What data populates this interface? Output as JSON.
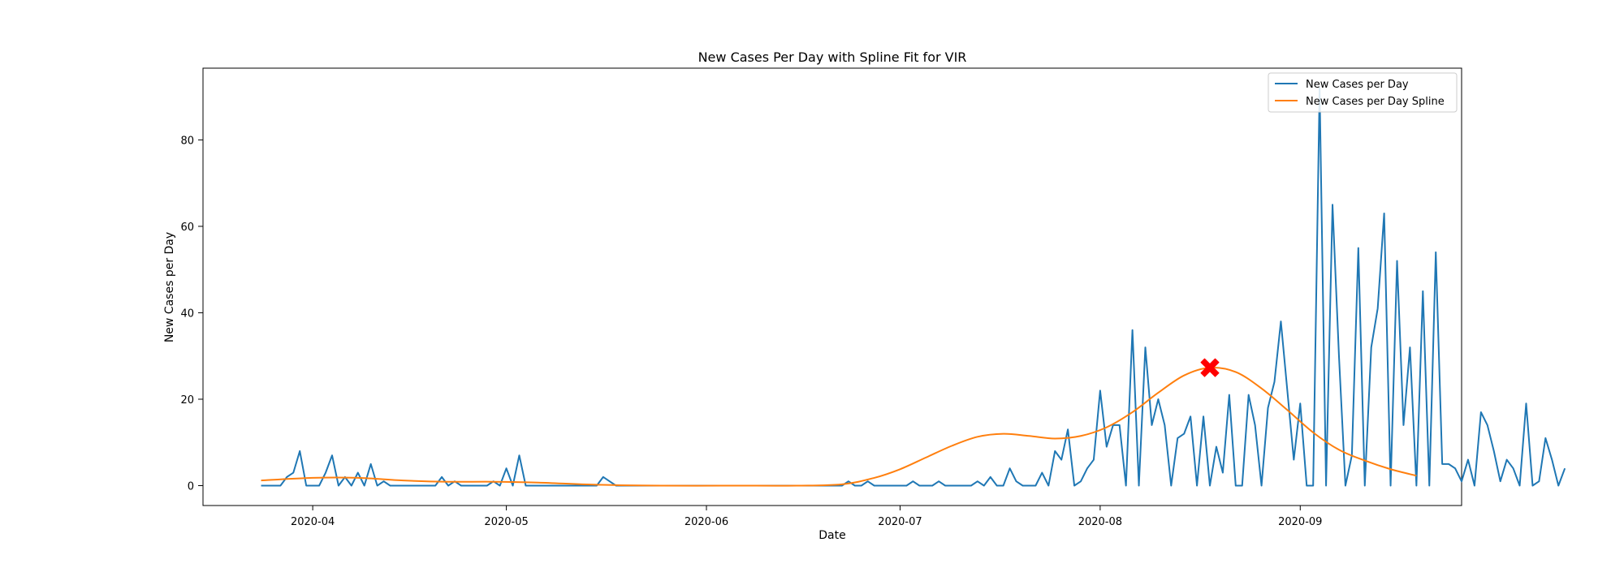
{
  "chart_data": {
    "type": "line",
    "title": "New Cases Per Day with Spline Fit for VIR",
    "xlabel": "Date",
    "ylabel": "New Cases per Day",
    "x_start": "2020-03-24",
    "xlim": [
      "2020-03-15",
      "2020-09-26"
    ],
    "ylim": [
      -4.6,
      96.6
    ],
    "x_ticks": [
      "2020-04",
      "2020-05",
      "2020-06",
      "2020-07",
      "2020-08",
      "2020-09"
    ],
    "y_ticks": [
      0,
      20,
      40,
      60,
      80
    ],
    "legend_position": "top-right",
    "grid": false,
    "series": [
      {
        "name": "New Cases per Day",
        "color": "#1f77b4",
        "values": [
          0,
          0,
          0,
          0,
          2,
          3,
          8,
          0,
          0,
          0,
          3,
          7,
          0,
          2,
          0,
          3,
          0,
          5,
          0,
          1,
          0,
          0,
          0,
          0,
          0,
          0,
          0,
          0,
          2,
          0,
          1,
          0,
          0,
          0,
          0,
          0,
          1,
          0,
          4,
          0,
          7,
          0,
          0,
          0,
          0,
          0,
          0,
          0,
          0,
          0,
          0,
          0,
          0,
          2,
          1,
          0,
          0,
          0,
          0,
          0,
          0,
          0,
          0,
          0,
          0,
          0,
          0,
          0,
          0,
          0,
          0,
          0,
          0,
          0,
          0,
          0,
          0,
          0,
          0,
          0,
          0,
          0,
          0,
          0,
          0,
          0,
          0,
          0,
          0,
          0,
          0,
          1,
          0,
          0,
          1,
          0,
          0,
          0,
          0,
          0,
          0,
          1,
          0,
          0,
          0,
          1,
          0,
          0,
          0,
          0,
          0,
          1,
          0,
          2,
          0,
          0,
          4,
          1,
          0,
          0,
          0,
          3,
          0,
          8,
          6,
          13,
          0,
          1,
          4,
          6,
          22,
          9,
          14,
          14,
          0,
          36,
          0,
          32,
          14,
          20,
          14,
          0,
          11,
          12,
          16,
          0,
          16,
          0,
          9,
          3,
          21,
          0,
          0,
          21,
          14,
          0,
          18,
          24,
          38,
          22,
          6,
          19,
          0,
          0,
          92,
          0,
          65,
          30,
          0,
          7,
          55,
          0,
          32,
          41,
          63,
          0,
          52,
          14,
          32,
          0,
          45,
          0,
          54,
          5,
          5,
          4,
          1,
          6,
          0,
          17,
          14,
          8,
          1,
          6,
          4,
          0,
          19,
          0,
          1,
          11,
          6,
          0,
          4
        ]
      },
      {
        "name": "New Cases per Day Spline",
        "color": "#ff7f0e",
        "points": [
          [
            "2020-03-24",
            1.2
          ],
          [
            "2020-04-01",
            1.8
          ],
          [
            "2020-04-08",
            1.8
          ],
          [
            "2020-04-15",
            1.2
          ],
          [
            "2020-04-22",
            0.9
          ],
          [
            "2020-04-29",
            0.9
          ],
          [
            "2020-05-06",
            0.7
          ],
          [
            "2020-05-15",
            0.2
          ],
          [
            "2020-05-25",
            0.0
          ],
          [
            "2020-06-05",
            0.0
          ],
          [
            "2020-06-15",
            0.0
          ],
          [
            "2020-06-22",
            0.3
          ],
          [
            "2020-06-27",
            1.8
          ],
          [
            "2020-07-01",
            3.8
          ],
          [
            "2020-07-05",
            6.5
          ],
          [
            "2020-07-09",
            9.2
          ],
          [
            "2020-07-13",
            11.3
          ],
          [
            "2020-07-17",
            12.0
          ],
          [
            "2020-07-21",
            11.5
          ],
          [
            "2020-07-25",
            10.9
          ],
          [
            "2020-07-29",
            11.5
          ],
          [
            "2020-08-02",
            13.5
          ],
          [
            "2020-08-06",
            17.0
          ],
          [
            "2020-08-10",
            21.5
          ],
          [
            "2020-08-14",
            25.5
          ],
          [
            "2020-08-18",
            27.3
          ],
          [
            "2020-08-22",
            26.3
          ],
          [
            "2020-08-26",
            22.5
          ],
          [
            "2020-08-30",
            17.5
          ],
          [
            "2020-09-03",
            12.3
          ],
          [
            "2020-09-07",
            8.3
          ],
          [
            "2020-09-11",
            5.8
          ],
          [
            "2020-09-15",
            3.8
          ],
          [
            "2020-09-19",
            2.3
          ]
        ]
      }
    ],
    "annotations": [
      {
        "type": "marker",
        "shape": "X",
        "x": "2020-08-18",
        "y": 27.3,
        "color": "#ff0000"
      }
    ]
  }
}
